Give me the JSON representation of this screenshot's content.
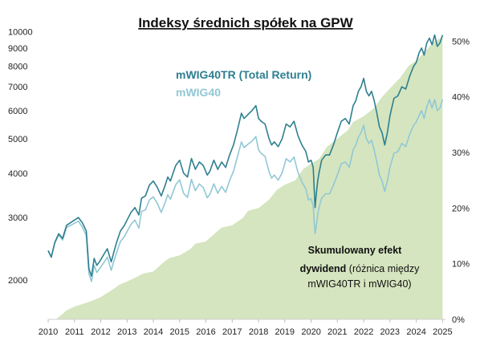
{
  "chart_data": {
    "type": "line",
    "title": "Indeksy średnich spółek na GPW",
    "x_ticks": [
      "2010",
      "2011",
      "2012",
      "2013",
      "2014",
      "2015",
      "2016",
      "2017",
      "2018",
      "2019",
      "2020",
      "2021",
      "2022",
      "2023",
      "2024",
      "2025"
    ],
    "xlim": [
      2010.0,
      2025.05
    ],
    "y_left": {
      "scale": "log",
      "ticks": [
        2000,
        3000,
        4000,
        5000,
        6000,
        7000,
        8000,
        9000,
        10000
      ],
      "range": [
        1550,
        10300
      ]
    },
    "y_right": {
      "ticks": [
        "0%",
        "10%",
        "20%",
        "30%",
        "40%",
        "50%"
      ],
      "values": [
        0,
        10,
        20,
        30,
        40,
        50
      ],
      "range": [
        0,
        52.5
      ]
    },
    "series": [
      {
        "name": "mWIG40TR (Total Return)",
        "color": "#2e7f8f",
        "axis": "left",
        "x": [
          2010.0,
          2010.12,
          2010.25,
          2010.4,
          2010.55,
          2010.7,
          2010.85,
          2011.0,
          2011.15,
          2011.3,
          2011.45,
          2011.55,
          2011.65,
          2011.75,
          2011.85,
          2011.95,
          2012.1,
          2012.25,
          2012.4,
          2012.5,
          2012.6,
          2012.75,
          2012.9,
          2013.0,
          2013.15,
          2013.3,
          2013.45,
          2013.55,
          2013.7,
          2013.85,
          2014.0,
          2014.15,
          2014.3,
          2014.45,
          2014.55,
          2014.65,
          2014.75,
          2014.85,
          2015.0,
          2015.15,
          2015.3,
          2015.45,
          2015.6,
          2015.75,
          2015.9,
          2016.05,
          2016.15,
          2016.3,
          2016.45,
          2016.6,
          2016.75,
          2016.9,
          2017.05,
          2017.2,
          2017.35,
          2017.45,
          2017.55,
          2017.65,
          2017.75,
          2017.9,
          2018.0,
          2018.1,
          2018.25,
          2018.4,
          2018.5,
          2018.6,
          2018.75,
          2018.9,
          2019.05,
          2019.2,
          2019.35,
          2019.5,
          2019.65,
          2019.8,
          2019.9,
          2020.0,
          2020.08,
          2020.15,
          2020.2,
          2020.25,
          2020.3,
          2020.4,
          2020.55,
          2020.7,
          2020.85,
          2021.0,
          2021.15,
          2021.3,
          2021.45,
          2021.6,
          2021.7,
          2021.8,
          2021.9,
          2022.0,
          2022.1,
          2022.2,
          2022.3,
          2022.4,
          2022.5,
          2022.6,
          2022.7,
          2022.8,
          2022.9,
          2023.0,
          2023.15,
          2023.3,
          2023.45,
          2023.6,
          2023.75,
          2023.9,
          2024.0,
          2024.1,
          2024.2,
          2024.3,
          2024.4,
          2024.5,
          2024.6,
          2024.7,
          2024.8,
          2024.9,
          2025.0
        ],
        "y": [
          2420,
          2320,
          2550,
          2700,
          2620,
          2850,
          2900,
          2950,
          3000,
          2900,
          2750,
          2150,
          2050,
          2300,
          2200,
          2250,
          2350,
          2450,
          2250,
          2400,
          2550,
          2750,
          2850,
          2950,
          3100,
          3200,
          3050,
          3400,
          3450,
          3700,
          3800,
          3650,
          3450,
          3700,
          3900,
          3800,
          4000,
          4200,
          4350,
          4000,
          3900,
          4400,
          4100,
          4300,
          4200,
          3950,
          4050,
          4350,
          4100,
          4300,
          4150,
          4500,
          4800,
          5300,
          5900,
          5700,
          5800,
          5900,
          6000,
          6200,
          5700,
          5600,
          5500,
          5000,
          4800,
          4900,
          4750,
          5000,
          5500,
          5400,
          5600,
          5100,
          4800,
          4600,
          4300,
          4350,
          4150,
          3200,
          3500,
          3800,
          4000,
          4350,
          4500,
          4500,
          4800,
          5200,
          5600,
          5700,
          5500,
          6200,
          6400,
          6800,
          7000,
          7400,
          6800,
          6600,
          6800,
          6400,
          5900,
          5400,
          5200,
          4800,
          5200,
          5800,
          6500,
          6600,
          7000,
          6900,
          7500,
          8000,
          8200,
          8700,
          9000,
          8600,
          9300,
          9600,
          9200,
          9800,
          9100,
          9300,
          9800
        ]
      },
      {
        "name": "mWIG40",
        "color": "#91c8d6",
        "axis": "left",
        "x": [
          2010.0,
          2010.12,
          2010.25,
          2010.4,
          2010.55,
          2010.7,
          2010.85,
          2011.0,
          2011.15,
          2011.3,
          2011.45,
          2011.55,
          2011.65,
          2011.75,
          2011.85,
          2011.95,
          2012.1,
          2012.25,
          2012.4,
          2012.5,
          2012.6,
          2012.75,
          2012.9,
          2013.0,
          2013.15,
          2013.3,
          2013.45,
          2013.55,
          2013.7,
          2013.85,
          2014.0,
          2014.15,
          2014.3,
          2014.45,
          2014.55,
          2014.65,
          2014.75,
          2014.85,
          2015.0,
          2015.15,
          2015.3,
          2015.45,
          2015.6,
          2015.75,
          2015.9,
          2016.05,
          2016.15,
          2016.3,
          2016.45,
          2016.6,
          2016.75,
          2016.9,
          2017.05,
          2017.2,
          2017.35,
          2017.45,
          2017.55,
          2017.65,
          2017.75,
          2017.9,
          2018.0,
          2018.1,
          2018.25,
          2018.4,
          2018.5,
          2018.6,
          2018.75,
          2018.9,
          2019.05,
          2019.2,
          2019.35,
          2019.5,
          2019.65,
          2019.8,
          2019.9,
          2020.0,
          2020.08,
          2020.15,
          2020.2,
          2020.25,
          2020.3,
          2020.4,
          2020.55,
          2020.7,
          2020.85,
          2021.0,
          2021.15,
          2021.3,
          2021.45,
          2021.6,
          2021.7,
          2021.8,
          2021.9,
          2022.0,
          2022.1,
          2022.2,
          2022.3,
          2022.4,
          2022.5,
          2022.6,
          2022.7,
          2022.8,
          2022.9,
          2023.0,
          2023.15,
          2023.3,
          2023.45,
          2023.6,
          2023.75,
          2023.9,
          2024.0,
          2024.1,
          2024.2,
          2024.3,
          2024.4,
          2024.5,
          2024.6,
          2024.7,
          2024.8,
          2024.9,
          2025.0
        ],
        "y": [
          2420,
          2320,
          2540,
          2680,
          2590,
          2810,
          2850,
          2890,
          2930,
          2820,
          2670,
          2080,
          1980,
          2200,
          2100,
          2150,
          2230,
          2320,
          2130,
          2260,
          2390,
          2570,
          2650,
          2740,
          2870,
          2950,
          2800,
          3120,
          3150,
          3360,
          3430,
          3290,
          3100,
          3310,
          3480,
          3380,
          3540,
          3710,
          3830,
          3510,
          3420,
          3840,
          3570,
          3730,
          3640,
          3410,
          3490,
          3730,
          3510,
          3670,
          3530,
          3810,
          4050,
          4460,
          4900,
          4720,
          4790,
          4860,
          4920,
          5070,
          4650,
          4550,
          4460,
          4040,
          3870,
          3950,
          3820,
          4010,
          4390,
          4300,
          4440,
          4020,
          3780,
          3610,
          3360,
          3390,
          3230,
          2700,
          2850,
          3050,
          3200,
          3400,
          3500,
          3500,
          3700,
          3950,
          4250,
          4300,
          4150,
          4650,
          4800,
          5050,
          5200,
          5450,
          5000,
          4850,
          4950,
          4650,
          4300,
          3950,
          3800,
          3550,
          3800,
          4150,
          4550,
          4600,
          4850,
          4750,
          5150,
          5450,
          5580,
          5800,
          6000,
          5700,
          6150,
          6450,
          6100,
          6450,
          6000,
          6100,
          6450
        ]
      },
      {
        "name": "Skumulowany efekt dywidend",
        "color": "#d5e5bf",
        "axis": "right",
        "type": "area",
        "x": [
          2010.0,
          2010.3,
          2010.5,
          2010.7,
          2011.0,
          2011.6,
          2012.0,
          2012.5,
          2012.7,
          2013.0,
          2013.4,
          2013.6,
          2014.0,
          2014.4,
          2014.6,
          2015.0,
          2015.4,
          2015.6,
          2016.0,
          2016.4,
          2016.6,
          2017.0,
          2017.4,
          2017.6,
          2018.0,
          2018.4,
          2018.7,
          2019.0,
          2019.4,
          2019.7,
          2020.0,
          2020.3,
          2020.6,
          2021.0,
          2021.4,
          2021.6,
          2022.0,
          2022.4,
          2022.7,
          2023.0,
          2023.4,
          2023.7,
          2024.0,
          2024.4,
          2024.7,
          2025.0
        ],
        "y": [
          0,
          0,
          0.8,
          1.6,
          2.3,
          3.2,
          4.0,
          5.5,
          6.2,
          6.8,
          7.7,
          8.2,
          8.6,
          10.3,
          11.0,
          11.5,
          12.6,
          13.6,
          14.0,
          15.7,
          16.5,
          16.9,
          18.2,
          19.5,
          20.0,
          21.5,
          23.3,
          24.2,
          25.0,
          27.0,
          28.0,
          28.8,
          31.0,
          32.5,
          34.0,
          35.5,
          36.5,
          38.0,
          40.0,
          41.5,
          43.5,
          45.5,
          46.5,
          48.5,
          50.0,
          50.7
        ]
      }
    ],
    "annotation": {
      "line1": "Skumulowany efekt",
      "line2_bold": "dywidend",
      "line2_rest": " (różnica między",
      "line3": "mWIG40TR  i mWIG40)"
    }
  }
}
